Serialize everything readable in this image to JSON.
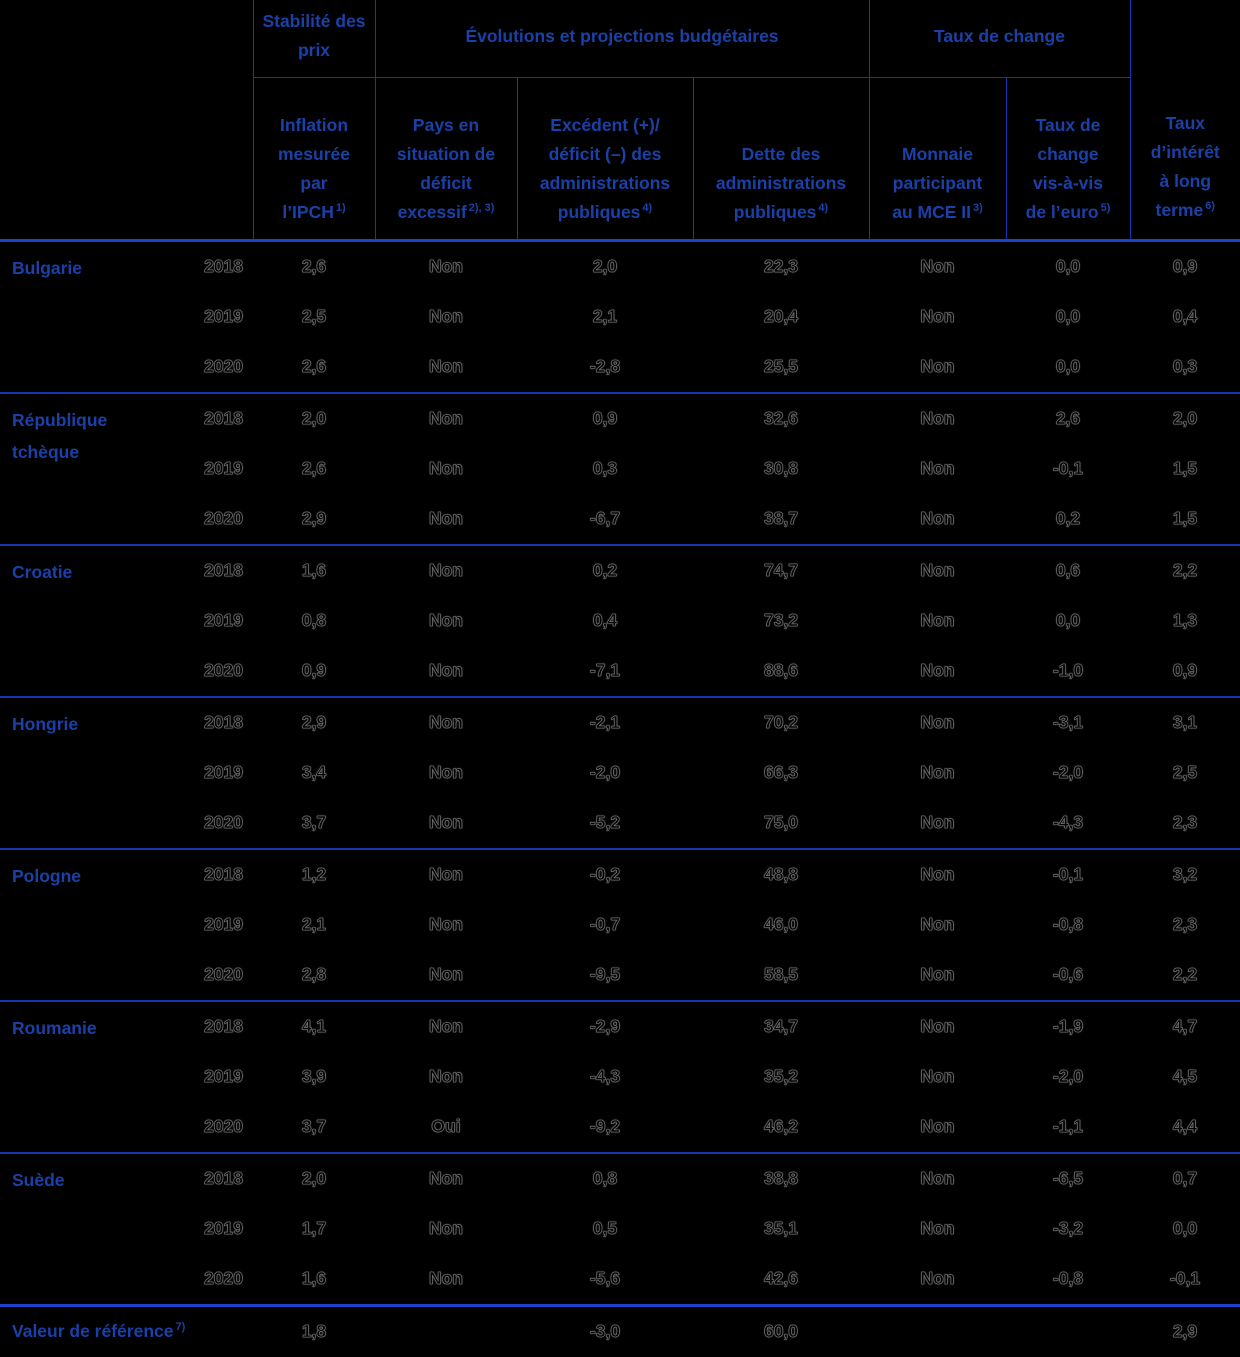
{
  "colors": {
    "background": "#000000",
    "header_text": "#1b41a8",
    "grid_line": "#1636ad",
    "thick_line": "#1d41cb",
    "data_text": "#000000"
  },
  "table": {
    "header": {
      "groups": [
        {
          "label": "Stabilité des prix"
        },
        {
          "label": "Évolutions et projections budgétaires"
        },
        {
          "label": "Taux de change"
        }
      ],
      "columns": [
        {
          "label": "Inflation mesurée par l’IPCH",
          "footnote": "1)"
        },
        {
          "label": "Pays en situation de déficit excessif",
          "footnote": "2), 3)"
        },
        {
          "label": "Excédent (+)/ déficit (–) des administrations publiques",
          "footnote": "4)"
        },
        {
          "label": "Dette des administrations publiques",
          "footnote": "4)"
        },
        {
          "label": "Monnaie participant au MCE II",
          "footnote": "3)"
        },
        {
          "label": "Taux de change vis-à-vis de l’euro",
          "footnote": "5)"
        },
        {
          "label": "Taux d’intérêt à long terme",
          "footnote": "6)"
        }
      ]
    },
    "countries": [
      {
        "name": "Bulgarie",
        "rows": [
          {
            "year": "2018",
            "hicp": "2,6",
            "edp": "Non",
            "balance": "2,0",
            "debt": "22,3",
            "erm2": "Non",
            "fx": "0,0",
            "ltr": "0,9"
          },
          {
            "year": "2019",
            "hicp": "2,5",
            "edp": "Non",
            "balance": "2,1",
            "debt": "20,4",
            "erm2": "Non",
            "fx": "0,0",
            "ltr": "0,4"
          },
          {
            "year": "2020",
            "hicp": "2,6",
            "edp": "Non",
            "balance": "-2,8",
            "debt": "25,5",
            "erm2": "Non",
            "fx": "0,0",
            "ltr": "0,3"
          }
        ]
      },
      {
        "name": "République tchèque",
        "rows": [
          {
            "year": "2018",
            "hicp": "2,0",
            "edp": "Non",
            "balance": "0,9",
            "debt": "32,6",
            "erm2": "Non",
            "fx": "2,6",
            "ltr": "2,0"
          },
          {
            "year": "2019",
            "hicp": "2,6",
            "edp": "Non",
            "balance": "0,3",
            "debt": "30,8",
            "erm2": "Non",
            "fx": "-0,1",
            "ltr": "1,5"
          },
          {
            "year": "2020",
            "hicp": "2,9",
            "edp": "Non",
            "balance": "-6,7",
            "debt": "38,7",
            "erm2": "Non",
            "fx": "0,2",
            "ltr": "1,5"
          }
        ]
      },
      {
        "name": "Croatie",
        "rows": [
          {
            "year": "2018",
            "hicp": "1,6",
            "edp": "Non",
            "balance": "0,2",
            "debt": "74,7",
            "erm2": "Non",
            "fx": "0,6",
            "ltr": "2,2"
          },
          {
            "year": "2019",
            "hicp": "0,8",
            "edp": "Non",
            "balance": "0,4",
            "debt": "73,2",
            "erm2": "Non",
            "fx": "0,0",
            "ltr": "1,3"
          },
          {
            "year": "2020",
            "hicp": "0,9",
            "edp": "Non",
            "balance": "-7,1",
            "debt": "88,6",
            "erm2": "Non",
            "fx": "-1,0",
            "ltr": "0,9"
          }
        ]
      },
      {
        "name": "Hongrie",
        "rows": [
          {
            "year": "2018",
            "hicp": "2,9",
            "edp": "Non",
            "balance": "-2,1",
            "debt": "70,2",
            "erm2": "Non",
            "fx": "-3,1",
            "ltr": "3,1"
          },
          {
            "year": "2019",
            "hicp": "3,4",
            "edp": "Non",
            "balance": "-2,0",
            "debt": "66,3",
            "erm2": "Non",
            "fx": "-2,0",
            "ltr": "2,5"
          },
          {
            "year": "2020",
            "hicp": "3,7",
            "edp": "Non",
            "balance": "-5,2",
            "debt": "75,0",
            "erm2": "Non",
            "fx": "-4,3",
            "ltr": "2,3"
          }
        ]
      },
      {
        "name": "Pologne",
        "rows": [
          {
            "year": "2018",
            "hicp": "1,2",
            "edp": "Non",
            "balance": "-0,2",
            "debt": "48,8",
            "erm2": "Non",
            "fx": "-0,1",
            "ltr": "3,2"
          },
          {
            "year": "2019",
            "hicp": "2,1",
            "edp": "Non",
            "balance": "-0,7",
            "debt": "46,0",
            "erm2": "Non",
            "fx": "-0,8",
            "ltr": "2,3"
          },
          {
            "year": "2020",
            "hicp": "2,8",
            "edp": "Non",
            "balance": "-9,5",
            "debt": "58,5",
            "erm2": "Non",
            "fx": "-0,6",
            "ltr": "2,2"
          }
        ]
      },
      {
        "name": "Roumanie",
        "rows": [
          {
            "year": "2018",
            "hicp": "4,1",
            "edp": "Non",
            "balance": "-2,9",
            "debt": "34,7",
            "erm2": "Non",
            "fx": "-1,9",
            "ltr": "4,7"
          },
          {
            "year": "2019",
            "hicp": "3,9",
            "edp": "Non",
            "balance": "-4,3",
            "debt": "35,2",
            "erm2": "Non",
            "fx": "-2,0",
            "ltr": "4,5"
          },
          {
            "year": "2020",
            "hicp": "3,7",
            "edp": "Oui",
            "balance": "-9,2",
            "debt": "46,2",
            "erm2": "Non",
            "fx": "-1,1",
            "ltr": "4,4"
          }
        ]
      },
      {
        "name": "Suède",
        "rows": [
          {
            "year": "2018",
            "hicp": "2,0",
            "edp": "Non",
            "balance": "0,8",
            "debt": "38,8",
            "erm2": "Non",
            "fx": "-6,5",
            "ltr": "0,7"
          },
          {
            "year": "2019",
            "hicp": "1,7",
            "edp": "Non",
            "balance": "0,5",
            "debt": "35,1",
            "erm2": "Non",
            "fx": "-3,2",
            "ltr": "0,0"
          },
          {
            "year": "2020",
            "hicp": "1,6",
            "edp": "Non",
            "balance": "-5,6",
            "debt": "42,6",
            "erm2": "Non",
            "fx": "-0,8",
            "ltr": "-0,1"
          }
        ]
      }
    ],
    "reference": {
      "label": "Valeur de référence",
      "footnote": "7)",
      "values": {
        "hicp": "1,8",
        "balance": "-3,0",
        "debt": "60,0",
        "ltr": "2,9"
      }
    }
  }
}
